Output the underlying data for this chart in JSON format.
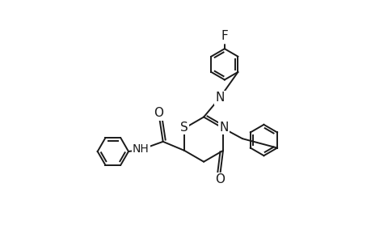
{
  "bg_color": "#ffffff",
  "line_color": "#1a1a1a",
  "line_width": 1.4,
  "figsize": [
    4.6,
    3.0
  ],
  "dpi": 100,
  "xlim": [
    0.0,
    9.5
  ],
  "ylim": [
    0.5,
    8.5
  ]
}
